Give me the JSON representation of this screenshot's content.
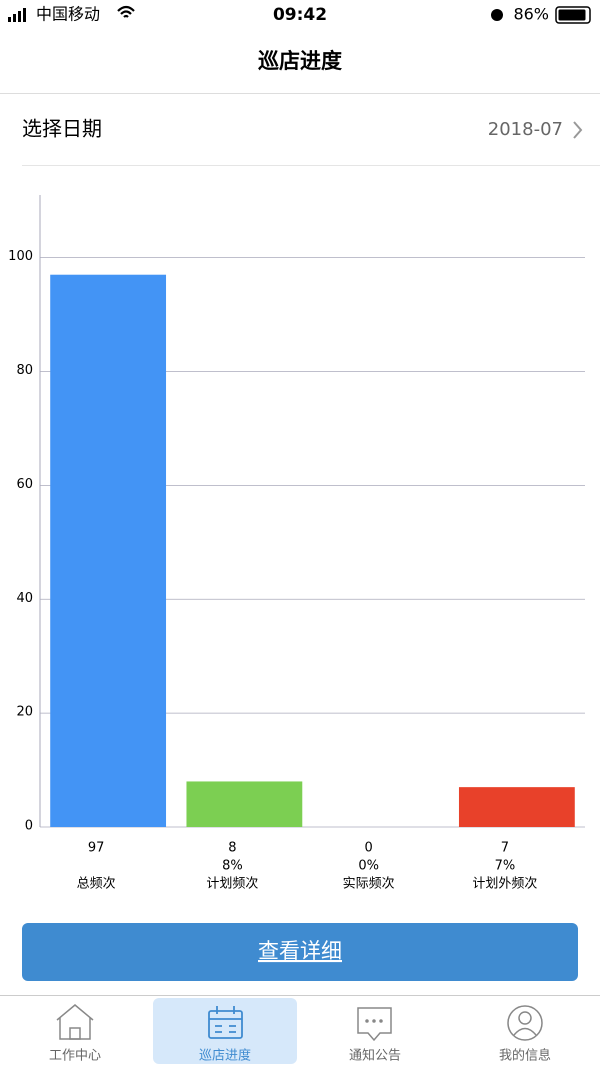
{
  "status_bar": {
    "carrier": "中国移动",
    "time": "09:42",
    "battery": "86%"
  },
  "header": {
    "title": "巡店进度"
  },
  "date_picker": {
    "label": "选择日期",
    "value": "2018-07"
  },
  "chart_data": {
    "type": "bar",
    "categories": [
      "总频次",
      "计划频次",
      "实际频次",
      "计划外频次"
    ],
    "values": [
      97,
      8,
      0,
      7
    ],
    "rate_labels": [
      null,
      "8%",
      "0%",
      "7%"
    ],
    "colors": [
      "#4394f5",
      "#7ccf52",
      "#f5a623",
      "#e8412a"
    ],
    "ylim": [
      0,
      111
    ],
    "yticks": [
      0,
      20,
      40,
      60,
      80,
      100
    ],
    "grid": true
  },
  "button": {
    "label": "查看详细"
  },
  "tabs": [
    {
      "label": "工作中心"
    },
    {
      "label": "巡店进度"
    },
    {
      "label": "通知公告"
    },
    {
      "label": "我的信息"
    }
  ],
  "active_tab": 1
}
